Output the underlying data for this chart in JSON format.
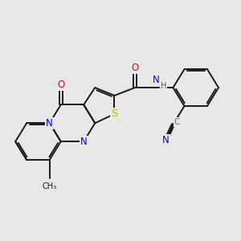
{
  "background_color": "#e8e8e8",
  "bond_color": "#1a1a1a",
  "bond_width": 1.4,
  "dbo": 0.055,
  "atom_colors": {
    "N": "#0000ee",
    "O": "#ee0000",
    "S": "#ccaa00",
    "H": "#008080",
    "C": "#2a8080"
  },
  "font_size": 8.5,
  "figsize": [
    3.0,
    3.0
  ],
  "dpi": 100
}
